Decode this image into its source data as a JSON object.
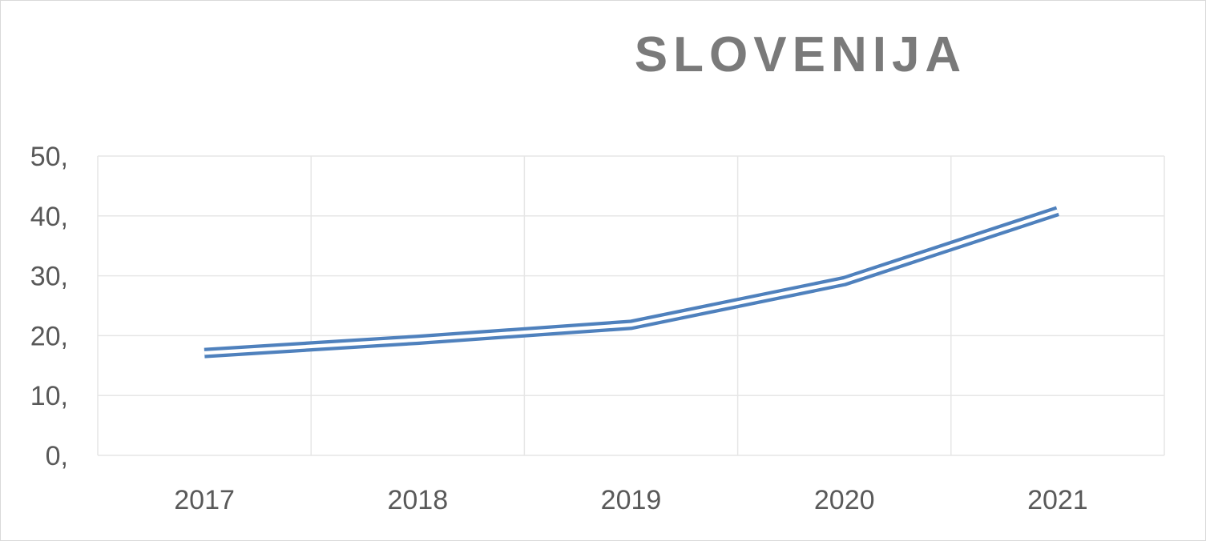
{
  "chart_data": {
    "type": "line",
    "title": "SLOVENIJA",
    "xlabel": "",
    "ylabel": "",
    "categories": [
      "2017",
      "2018",
      "2019",
      "2020",
      "2021"
    ],
    "series": [
      {
        "values": [
          17.1,
          19.3,
          21.8,
          29.1,
          40.8
        ]
      }
    ],
    "ylim": [
      0,
      50
    ],
    "y_ticks": [
      0,
      10,
      20,
      30,
      40,
      50
    ],
    "y_tick_labels": [
      "0,",
      "10,",
      "20,",
      "30,",
      "40,",
      "50,"
    ],
    "grid": "on",
    "legend": "none",
    "colors": {
      "series": "#4f81bd",
      "grid": "#e6e6e6",
      "title": "#7a7a7a",
      "tick_text": "#595959"
    },
    "line_style": "double"
  }
}
